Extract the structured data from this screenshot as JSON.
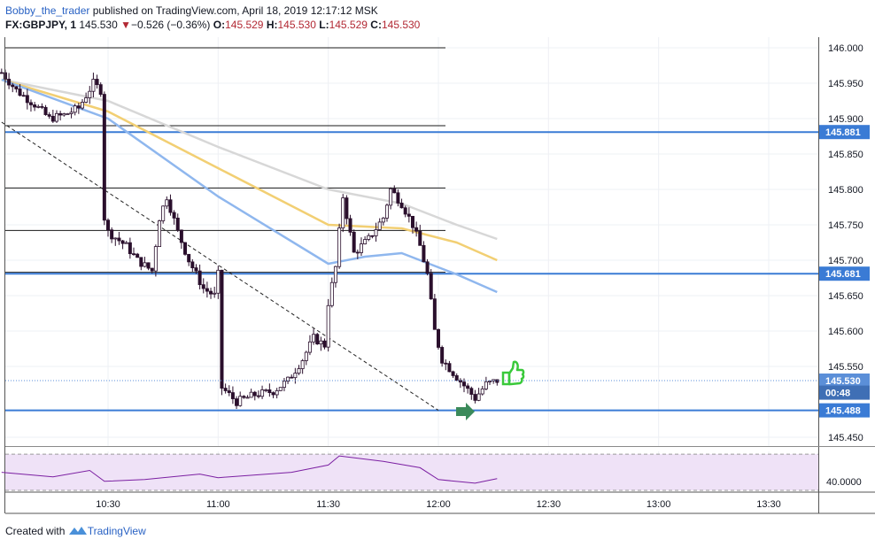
{
  "header": {
    "author": "Bobby_the_trader",
    "published": "published on TradingView.com, April 18, 2019 12:17:12 MSK",
    "symbol": "FX:GBPJPY, 1",
    "last": "145.530",
    "change_arrow": "▼",
    "change": "−0.526 (−0.36%)",
    "o_label": "O:",
    "o_value": "145.529",
    "h_label": "H:",
    "h_value": "145.530",
    "l_label": "L:",
    "l_value": "145.529",
    "c_label": "C:",
    "c_value": "145.530"
  },
  "footer": {
    "created_with": "Created with",
    "brand": "TradingView"
  },
  "colors": {
    "bull": "#ffffff",
    "bear": "#2a0f2c",
    "level": "#3a7bd5",
    "ma_fast": "#8fb7ee",
    "ma_mid": "#f2cf73",
    "ma_slow": "#d7d7d7",
    "rsi_line": "#7b1fa2",
    "rsi_band": "#efe2f7",
    "arrow": "#3b8a5a",
    "thumb": "#39c93a"
  },
  "icons": {
    "arrow": "right-arrow-icon",
    "thumb": "thumbs-up-icon",
    "logo": "tradingview-logo-icon"
  },
  "price_axis": {
    "labels": [
      "146.000",
      "145.950",
      "145.900",
      "145.850",
      "145.800",
      "145.750",
      "145.700",
      "145.650",
      "145.600",
      "145.550",
      "145.450"
    ]
  },
  "tags": [
    {
      "text": "145.881",
      "value": 145.881,
      "kind": "level"
    },
    {
      "text": "145.681",
      "value": 145.681,
      "kind": "level"
    },
    {
      "text": "145.530",
      "value": 145.53,
      "kind": "last"
    },
    {
      "text": "00:48",
      "value": 145.513,
      "kind": "countdown"
    },
    {
      "text": "145.488",
      "value": 145.488,
      "kind": "level"
    }
  ],
  "rsi_label": "40.0000",
  "chart_data": [
    {
      "type": "candlestick",
      "symbol": "FX:GBPJPY",
      "interval": "1",
      "title": "",
      "xlabel": "",
      "ylabel": "",
      "x_ticks": [
        "10:30",
        "11:00",
        "11:30",
        "12:00",
        "12:30",
        "13:00",
        "13:30"
      ],
      "x_range": [
        "10:01",
        "13:45"
      ],
      "ylim": [
        145.43,
        146.02
      ],
      "grid": true,
      "candles_time_range": [
        "10:01",
        "12:16"
      ],
      "close_path": [
        [
          "10:01",
          145.965
        ],
        [
          "10:05",
          145.94
        ],
        [
          "10:10",
          145.92
        ],
        [
          "10:14",
          145.9
        ],
        [
          "10:18",
          145.905
        ],
        [
          "10:22",
          145.915
        ],
        [
          "10:26",
          145.95
        ],
        [
          "10:28",
          145.94
        ],
        [
          "10:29",
          145.76
        ],
        [
          "10:30",
          145.74
        ],
        [
          "10:35",
          145.72
        ],
        [
          "10:38",
          145.7
        ],
        [
          "10:42",
          145.685
        ],
        [
          "10:44",
          145.76
        ],
        [
          "10:46",
          145.79
        ],
        [
          "10:49",
          145.74
        ],
        [
          "10:52",
          145.7
        ],
        [
          "10:56",
          145.66
        ],
        [
          "10:59",
          145.65
        ],
        [
          "11:00",
          145.68
        ],
        [
          "11:01",
          145.52
        ],
        [
          "11:05",
          145.5
        ],
        [
          "11:10",
          145.51
        ],
        [
          "11:15",
          145.515
        ],
        [
          "11:19",
          145.53
        ],
        [
          "11:23",
          145.56
        ],
        [
          "11:26",
          145.59
        ],
        [
          "11:29",
          145.58
        ],
        [
          "11:30",
          145.64
        ],
        [
          "11:32",
          145.69
        ],
        [
          "11:34",
          145.79
        ],
        [
          "11:37",
          145.71
        ],
        [
          "11:41",
          145.73
        ],
        [
          "11:45",
          145.76
        ],
        [
          "11:47",
          145.8
        ],
        [
          "11:50",
          145.78
        ],
        [
          "11:53",
          145.75
        ],
        [
          "11:55",
          145.72
        ],
        [
          "11:57",
          145.68
        ],
        [
          "11:59",
          145.6
        ],
        [
          "12:01",
          145.56
        ],
        [
          "12:05",
          145.535
        ],
        [
          "12:10",
          145.505
        ],
        [
          "12:13",
          145.525
        ],
        [
          "12:16",
          145.53
        ]
      ],
      "moving_averages": [
        {
          "color": "#d7d7d7",
          "points": [
            [
              "10:01",
              145.955
            ],
            [
              "10:30",
              145.925
            ],
            [
              "11:00",
              145.86
            ],
            [
              "11:30",
              145.8
            ],
            [
              "11:50",
              145.78
            ],
            [
              "12:05",
              145.75
            ],
            [
              "12:16",
              145.73
            ]
          ]
        },
        {
          "color": "#f2cf73",
          "points": [
            [
              "10:01",
              145.955
            ],
            [
              "10:30",
              145.91
            ],
            [
              "11:00",
              145.83
            ],
            [
              "11:30",
              145.75
            ],
            [
              "11:50",
              145.745
            ],
            [
              "12:05",
              145.725
            ],
            [
              "12:16",
              145.7
            ]
          ]
        },
        {
          "color": "#8fb7ee",
          "points": [
            [
              "10:01",
              145.955
            ],
            [
              "10:30",
              145.9
            ],
            [
              "11:00",
              145.79
            ],
            [
              "11:30",
              145.695
            ],
            [
              "11:40",
              145.705
            ],
            [
              "11:50",
              145.71
            ],
            [
              "12:05",
              145.68
            ],
            [
              "12:16",
              145.655
            ]
          ]
        }
      ],
      "horizontal_levels": [
        {
          "value": 146.0,
          "end": "12:00"
        },
        {
          "value": 145.89,
          "end": "12:00"
        },
        {
          "value": 145.881,
          "end": "13:45"
        },
        {
          "value": 145.802,
          "end": "12:00"
        },
        {
          "value": 145.742,
          "end": "12:00"
        },
        {
          "value": 145.683,
          "end": "12:00"
        },
        {
          "value": 145.681,
          "end": "13:45"
        },
        {
          "value": 145.488,
          "end": "12:00"
        },
        {
          "value": 145.488,
          "end": "13:45"
        }
      ],
      "trendline": {
        "from": [
          "10:01",
          145.895
        ],
        "to": [
          "12:00",
          145.488
        ]
      },
      "last_price": 145.53
    },
    {
      "type": "line",
      "indicator": "RSI",
      "title": "",
      "xlabel": "",
      "ylabel": "",
      "ylim": [
        32,
        73
      ],
      "band": [
        30,
        70
      ],
      "tick_labels": [
        "40.0000"
      ],
      "series": [
        {
          "x": [
            "10:01",
            "10:15",
            "10:25",
            "10:29",
            "10:40",
            "10:55",
            "11:00",
            "11:20",
            "11:30",
            "11:33",
            "11:45",
            "11:55",
            "12:00",
            "12:10",
            "12:16"
          ],
          "values": [
            50,
            45,
            52,
            40,
            42,
            48,
            44,
            50,
            58,
            68,
            62,
            55,
            42,
            38,
            43
          ]
        }
      ]
    }
  ]
}
